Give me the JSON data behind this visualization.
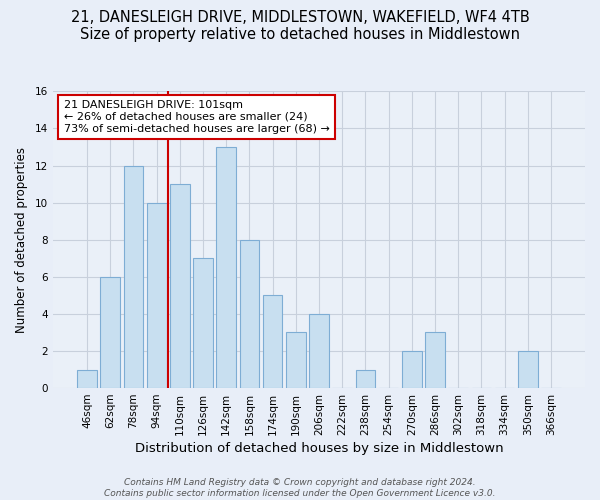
{
  "title": "21, DANESLEIGH DRIVE, MIDDLESTOWN, WAKEFIELD, WF4 4TB",
  "subtitle": "Size of property relative to detached houses in Middlestown",
  "xlabel": "Distribution of detached houses by size in Middlestown",
  "ylabel": "Number of detached properties",
  "bar_labels": [
    "46sqm",
    "62sqm",
    "78sqm",
    "94sqm",
    "110sqm",
    "126sqm",
    "142sqm",
    "158sqm",
    "174sqm",
    "190sqm",
    "206sqm",
    "222sqm",
    "238sqm",
    "254sqm",
    "270sqm",
    "286sqm",
    "302sqm",
    "318sqm",
    "334sqm",
    "350sqm",
    "366sqm"
  ],
  "bar_values": [
    1,
    6,
    12,
    10,
    11,
    7,
    13,
    8,
    5,
    3,
    4,
    0,
    1,
    0,
    2,
    3,
    0,
    0,
    0,
    2,
    0
  ],
  "bar_color": "#c8dff0",
  "bar_edge_color": "#7eadd4",
  "vline_x": 3.5,
  "vline_color": "#cc0000",
  "annotation_text": "21 DANESLEIGH DRIVE: 101sqm\n← 26% of detached houses are smaller (24)\n73% of semi-detached houses are larger (68) →",
  "annotation_box_edgecolor": "#cc0000",
  "annotation_box_facecolor": "#ffffff",
  "ylim": [
    0,
    16
  ],
  "yticks": [
    0,
    2,
    4,
    6,
    8,
    10,
    12,
    14,
    16
  ],
  "footer_line1": "Contains HM Land Registry data © Crown copyright and database right 2024.",
  "footer_line2": "Contains public sector information licensed under the Open Government Licence v3.0.",
  "title_fontsize": 10.5,
  "subtitle_fontsize": 9.5,
  "xlabel_fontsize": 9.5,
  "ylabel_fontsize": 8.5,
  "tick_fontsize": 7.5,
  "footer_fontsize": 6.5,
  "annotation_fontsize": 8,
  "figure_facecolor": "#e8eef8",
  "axes_facecolor": "#eaf0f8",
  "grid_color": "#c8d0dc"
}
